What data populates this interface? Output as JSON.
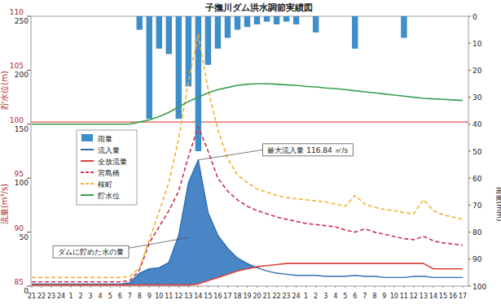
{
  "chart_data": {
    "type": "line",
    "title": "子撫川ダム洪水調節実績図",
    "y_label": "流量(m³/s)",
    "y2_label": "雨量(mm)",
    "y3_label": "貯水位(m)",
    "categories": [
      "21",
      "22",
      "23",
      "24",
      "1",
      "2",
      "3",
      "4",
      "5",
      "6",
      "7",
      "8",
      "9",
      "10",
      "11",
      "12",
      "13",
      "14",
      "15",
      "16",
      "17",
      "18",
      "19",
      "20",
      "21",
      "22",
      "23",
      "24",
      "1",
      "2",
      "3",
      "4",
      "5",
      "6",
      "7",
      "8",
      "9",
      "10",
      "11",
      "12",
      "13",
      "14",
      "15",
      "16",
      "17"
    ],
    "ylim": [
      0,
      250
    ],
    "yticks": [
      0,
      50,
      100,
      150,
      200,
      250
    ],
    "y2lim": [
      100,
      0
    ],
    "y2ticks": [
      0,
      10,
      20,
      30,
      40,
      50,
      60,
      70,
      80,
      90,
      100
    ],
    "y3lim": [
      85,
      110
    ],
    "y3ticks": [
      85,
      90,
      95,
      100,
      105,
      110
    ],
    "grid": false,
    "legend": "upper left",
    "series": [
      {
        "name": "雨量",
        "type": "bar",
        "axis": "y2",
        "color": "#3d8ec9",
        "values": [
          0,
          0,
          0,
          0,
          0,
          0,
          0,
          0,
          0,
          0,
          0,
          5,
          38,
          12,
          14,
          38,
          26,
          50,
          18,
          12,
          8,
          5,
          4,
          3,
          2,
          3,
          2,
          3,
          0,
          6,
          0,
          0,
          0,
          12,
          0,
          0,
          0,
          0,
          8,
          0,
          0,
          0,
          0,
          0,
          0
        ]
      },
      {
        "name": "流入量",
        "type": "area",
        "axis": "y",
        "color": "#2e6db4",
        "line_style": "solid",
        "values": [
          2,
          2,
          2,
          2,
          2,
          2,
          2,
          2,
          2,
          2,
          3,
          12,
          16,
          17,
          22,
          47,
          96,
          116.84,
          68,
          47,
          35,
          26,
          21,
          17,
          14,
          12,
          11,
          10,
          10,
          10,
          9,
          9,
          9,
          10,
          9,
          9,
          8,
          8,
          8,
          9,
          9,
          8,
          8,
          8,
          8
        ]
      },
      {
        "name": "全放流量",
        "type": "line",
        "axis": "y",
        "color": "#d9433c",
        "line_style": "solid",
        "values": [
          1,
          1,
          1,
          1,
          1,
          1,
          1,
          1,
          1,
          1,
          1,
          1,
          1,
          1,
          1,
          1,
          1,
          2,
          5,
          8,
          11,
          14,
          16,
          18,
          19,
          20,
          21,
          21,
          21,
          21,
          21,
          21,
          21,
          21,
          21,
          21,
          21,
          21,
          21,
          21,
          21,
          16,
          16,
          16,
          16
        ]
      },
      {
        "name": "宮島橋",
        "type": "line",
        "axis": "y",
        "color": "#c9314f",
        "line_style": "dashed",
        "values": [
          4,
          4,
          4,
          4,
          4,
          4,
          4,
          4,
          4,
          4,
          5,
          15,
          40,
          55,
          70,
          88,
          120,
          148,
          125,
          100,
          88,
          80,
          74,
          70,
          67,
          64,
          62,
          60,
          58,
          57,
          56,
          55,
          52,
          50,
          53,
          50,
          48,
          46,
          44,
          43,
          46,
          42,
          40,
          39,
          38
        ]
      },
      {
        "name": "桜町",
        "type": "line",
        "axis": "y",
        "color": "#f2b233",
        "line_style": "dashed",
        "values": [
          8,
          8,
          8,
          8,
          8,
          8,
          8,
          8,
          8,
          8,
          9,
          17,
          43,
          69,
          96,
          137,
          190,
          233,
          182,
          145,
          118,
          103,
          96,
          90,
          87,
          84,
          82,
          81,
          80,
          79,
          78,
          76,
          74,
          84,
          76,
          73,
          71,
          70,
          68,
          67,
          80,
          70,
          66,
          64,
          62
        ]
      },
      {
        "name": "貯水位",
        "type": "line",
        "axis": "y3",
        "color": "#3a9e4f",
        "line_style": "solid",
        "values": [
          100.0,
          100.0,
          100.0,
          100.0,
          100.0,
          100.0,
          100.0,
          100.0,
          100.0,
          100.0,
          100.0,
          100.2,
          100.4,
          100.7,
          101.1,
          101.6,
          102.1,
          102.5,
          102.9,
          103.2,
          103.4,
          103.6,
          103.7,
          103.75,
          103.75,
          103.7,
          103.65,
          103.6,
          103.5,
          103.45,
          103.35,
          103.3,
          103.2,
          103.1,
          103.0,
          102.9,
          102.8,
          102.7,
          102.6,
          102.5,
          102.4,
          102.35,
          102.3,
          102.25,
          102.2
        ]
      }
    ],
    "reference_lines": [
      {
        "value": 100.2,
        "axis": "y3",
        "color": "#e05050"
      }
    ],
    "annotations": [
      {
        "text": "最大流入量 116.84 ㎥/s",
        "index": 17,
        "value": 116.84
      },
      {
        "text": "ダムに貯めた水の量",
        "index": 16,
        "value": 45
      }
    ]
  }
}
